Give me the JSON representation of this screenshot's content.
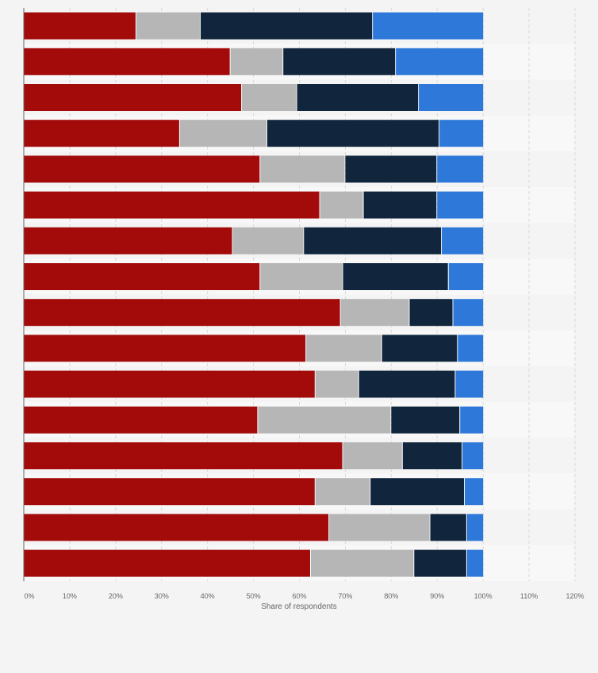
{
  "chart_data": {
    "type": "bar",
    "orientation": "horizontal",
    "stacked": true,
    "title": "",
    "xlabel": "Share of respondents",
    "ylabel": "",
    "xlim": [
      0,
      120
    ],
    "xticks": [
      "0%",
      "10%",
      "20%",
      "30%",
      "40%",
      "50%",
      "60%",
      "70%",
      "80%",
      "90%",
      "100%",
      "110%",
      "120%"
    ],
    "grid": true,
    "categories": [
      "",
      "",
      "",
      "",
      "",
      "",
      "",
      "",
      "",
      "",
      "",
      "",
      "",
      "",
      "",
      ""
    ],
    "series": [
      {
        "color": "#a30b0b",
        "values": [
          24.5,
          45,
          47.5,
          34,
          51.5,
          64.5,
          45.5,
          51.5,
          69,
          61.5,
          63.5,
          51,
          69.5,
          63.5,
          66.5,
          62.5
        ]
      },
      {
        "color": "#b6b6b6",
        "values": [
          14,
          11.5,
          12,
          19,
          18.5,
          9.5,
          15.5,
          18,
          15,
          16.5,
          9.5,
          29,
          13,
          12,
          22,
          22.5
        ]
      },
      {
        "color": "#11263d",
        "values": [
          37.5,
          24.5,
          26.5,
          37.5,
          20,
          16,
          30,
          23,
          9.5,
          16.5,
          21,
          15,
          13,
          20.5,
          8,
          11.5
        ]
      },
      {
        "color": "#2e78d9",
        "values": [
          24,
          19,
          14,
          9.5,
          10,
          10,
          9,
          7.5,
          6.5,
          5.5,
          6,
          5,
          4.5,
          4,
          3.5,
          3.5
        ]
      }
    ]
  }
}
